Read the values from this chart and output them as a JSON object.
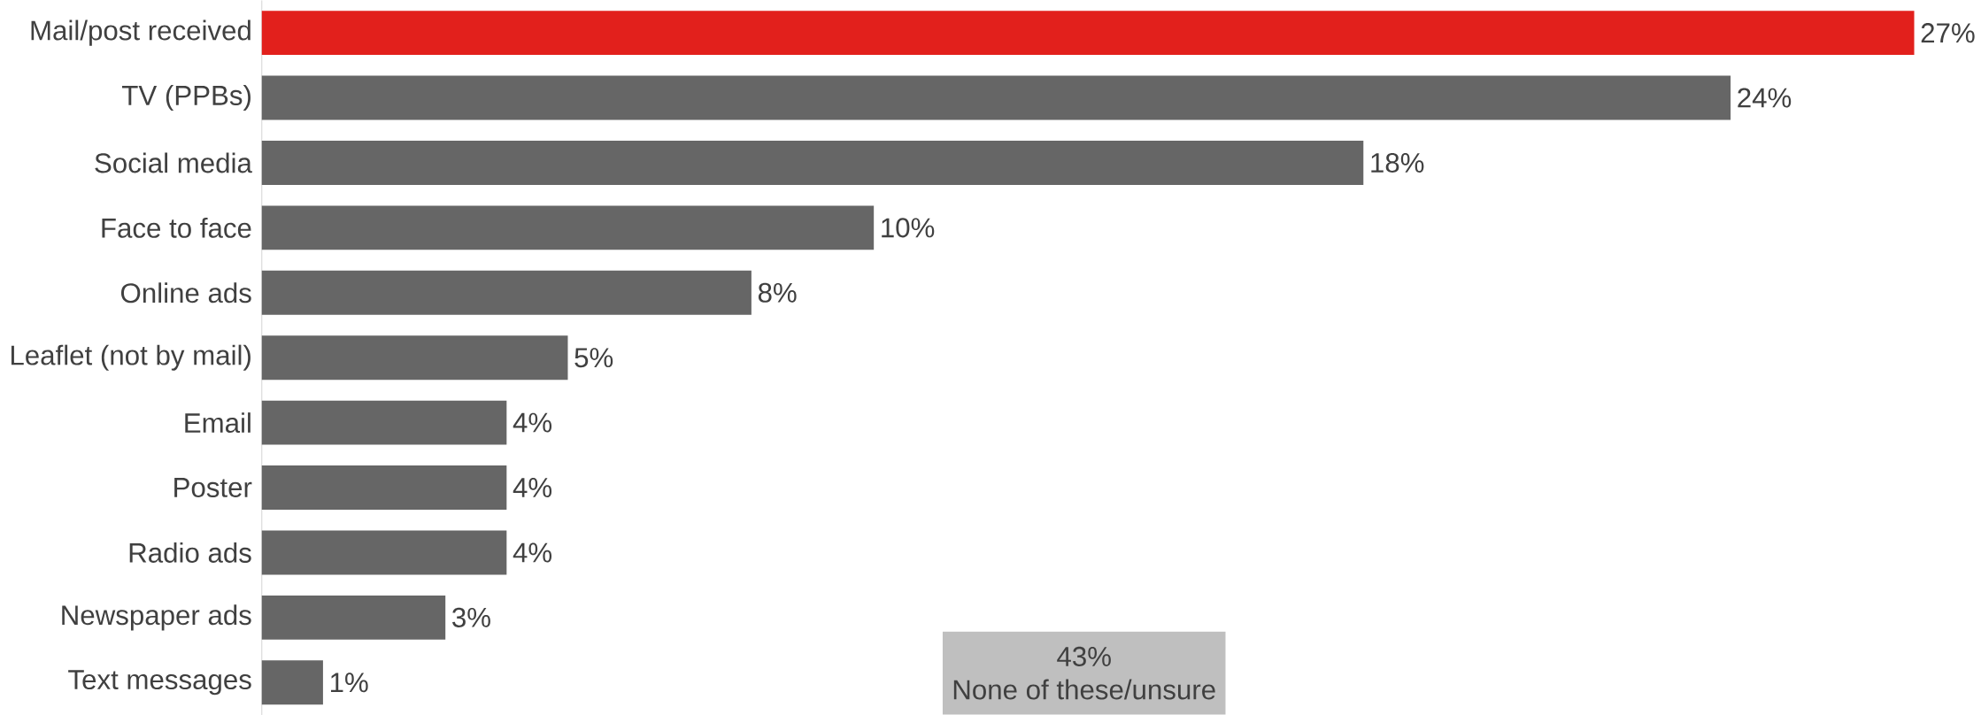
{
  "chart_data": {
    "type": "bar",
    "orientation": "horizontal",
    "categories": [
      "Mail/post received",
      "TV (PPBs)",
      "Social media",
      "Face to face",
      "Online ads",
      "Leaflet (not by mail)",
      "Email",
      "Poster",
      "Radio ads",
      "Newspaper ads",
      "Text messages"
    ],
    "values": [
      27,
      24,
      18,
      10,
      8,
      5,
      4,
      4,
      4,
      3,
      1
    ],
    "colors": [
      "#e2201c",
      "#666666",
      "#666666",
      "#666666",
      "#666666",
      "#666666",
      "#666666",
      "#666666",
      "#666666",
      "#666666",
      "#666666"
    ],
    "value_labels": [
      "27%",
      "24%",
      "18%",
      "10%",
      "8%",
      "5%",
      "4%",
      "4%",
      "4%",
      "3%",
      "1%"
    ],
    "annotations": [
      "43%",
      "None of these/unsure"
    ]
  }
}
